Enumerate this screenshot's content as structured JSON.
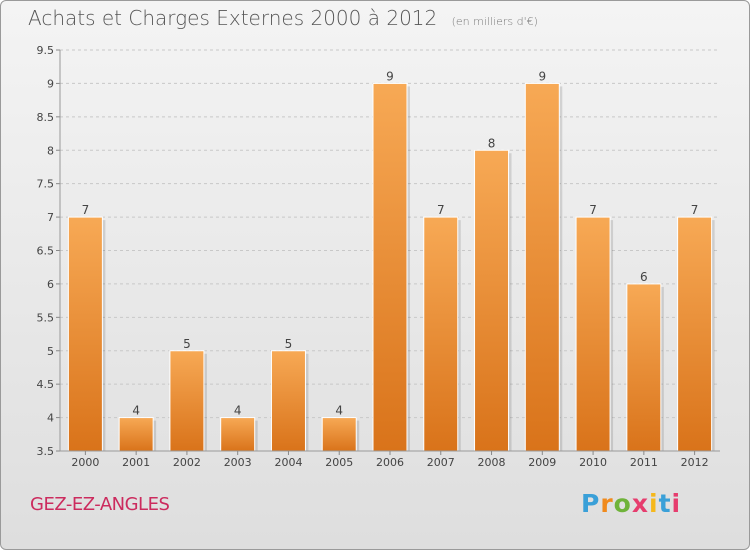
{
  "header": {
    "title": "Achats et Charges Externes 2000 à 2012",
    "unit_note": "(en milliers d'€)"
  },
  "footer": {
    "commune": "GEZ-EZ-ANGLES",
    "logo_letters": [
      "P",
      "r",
      "o",
      "x",
      "i",
      "t",
      "i"
    ],
    "logo_colors": [
      "#3aa0d8",
      "#f08a1c",
      "#6fb33a",
      "#e63d6e",
      "#f5b81c",
      "#3aa0d8",
      "#e63d6e"
    ]
  },
  "colors": {
    "bar": "#f0952e",
    "bar_light": "#f7a955",
    "bar_dark": "#d9731a",
    "grid": "#c8c8c8",
    "axis_text": "#444444"
  },
  "chart_data": {
    "type": "bar",
    "title": "Achats et Charges Externes 2000 à 2012",
    "subtitle": "(en milliers d'€)",
    "categories": [
      "2000",
      "2001",
      "2002",
      "2003",
      "2004",
      "2005",
      "2006",
      "2007",
      "2008",
      "2009",
      "2010",
      "2011",
      "2012"
    ],
    "values": [
      7,
      4,
      5,
      4,
      5,
      4,
      9,
      7,
      8,
      9,
      7,
      6,
      7
    ],
    "data_labels": [
      "7",
      "4",
      "5",
      "4",
      "5",
      "4",
      "9",
      "7",
      "8",
      "9",
      "7",
      "6",
      "7"
    ],
    "ylim": [
      3.5,
      9.5
    ],
    "yticks": [
      3.5,
      4,
      4.5,
      5,
      5.5,
      6,
      6.5,
      7,
      7.5,
      8,
      8.5,
      9,
      9.5
    ],
    "ytick_labels": [
      "3.5",
      "4",
      "4.5",
      "5",
      "5.5",
      "6",
      "6.5",
      "7",
      "7.5",
      "8",
      "8.5",
      "9",
      "9.5"
    ],
    "grid": true,
    "xlabel": "",
    "ylabel": ""
  }
}
